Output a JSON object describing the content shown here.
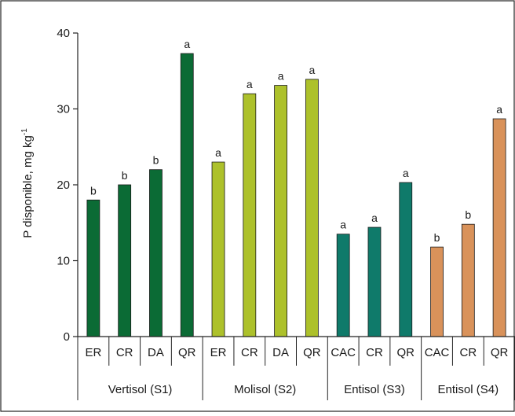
{
  "chart_data": {
    "type": "bar",
    "ylabel": "P disponible, mg kg",
    "ylabel_superscript": "-1",
    "ylim": [
      0,
      40
    ],
    "yticks": [
      0,
      10,
      20,
      30,
      40
    ],
    "groups": [
      {
        "label": "Vertisol (S1)",
        "color": "#0b6b35",
        "start": 0,
        "end": 4
      },
      {
        "label": "Molisol (S2)",
        "color": "#adc12b",
        "start": 4,
        "end": 8
      },
      {
        "label": "Entisol (S3)",
        "color": "#0f7a6a",
        "start": 8,
        "end": 11
      },
      {
        "label": "Entisol (S4)",
        "color": "#d9925a",
        "start": 11,
        "end": 14
      }
    ],
    "bars": [
      {
        "category": "ER",
        "value": 18.0,
        "letter": "b",
        "group": 0
      },
      {
        "category": "CR",
        "value": 20.0,
        "letter": "b",
        "group": 0
      },
      {
        "category": "DA",
        "value": 22.0,
        "letter": "b",
        "group": 0
      },
      {
        "category": "QR",
        "value": 37.3,
        "letter": "a",
        "group": 0
      },
      {
        "category": "ER",
        "value": 23.0,
        "letter": "a",
        "group": 1
      },
      {
        "category": "CR",
        "value": 32.0,
        "letter": "a",
        "group": 1
      },
      {
        "category": "DA",
        "value": 33.1,
        "letter": "a",
        "group": 1
      },
      {
        "category": "QR",
        "value": 33.9,
        "letter": "a",
        "group": 1
      },
      {
        "category": "CAC",
        "value": 13.5,
        "letter": "a",
        "group": 2
      },
      {
        "category": "CR",
        "value": 14.4,
        "letter": "a",
        "group": 2
      },
      {
        "category": "QR",
        "value": 20.3,
        "letter": "a",
        "group": 2
      },
      {
        "category": "CAC",
        "value": 11.8,
        "letter": "b",
        "group": 3
      },
      {
        "category": "CR",
        "value": 14.8,
        "letter": "b",
        "group": 3
      },
      {
        "category": "QR",
        "value": 28.7,
        "letter": "a",
        "group": 3
      }
    ]
  }
}
